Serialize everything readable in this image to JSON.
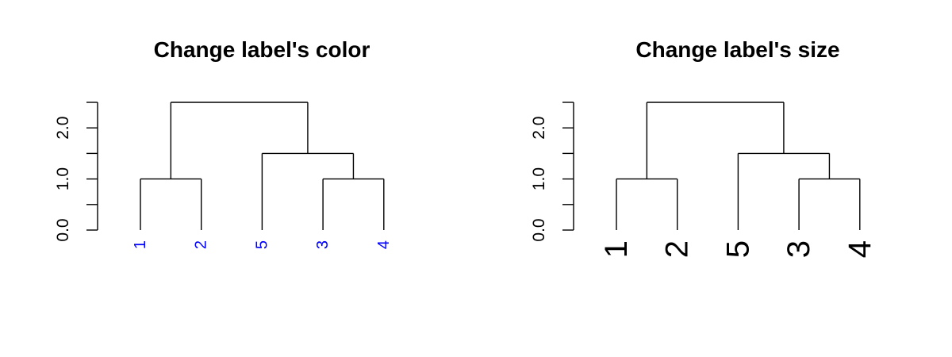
{
  "chart_data": [
    {
      "type": "dendrogram",
      "title": "Change label's color",
      "xlabel": "",
      "ylabel": "",
      "ylim": [
        0,
        2.5
      ],
      "y_ticks": [
        0,
        0.5,
        1,
        1.5,
        2,
        2.5
      ],
      "y_tick_labels": [
        "0.0",
        "",
        "1.0",
        "",
        "2.0",
        ""
      ],
      "leaves": [
        "1",
        "2",
        "5",
        "3",
        "4"
      ],
      "label_color": "#0000ff",
      "label_scale": 1,
      "merges": [
        {
          "left": "leaf:0",
          "right": "leaf:1",
          "height": 1.0
        },
        {
          "left": "leaf:3",
          "right": "leaf:4",
          "height": 1.0
        },
        {
          "left": "leaf:2",
          "right": "node:1",
          "height": 1.5
        },
        {
          "left": "node:0",
          "right": "node:2",
          "height": 2.5
        }
      ]
    },
    {
      "type": "dendrogram",
      "title": "Change label's size",
      "xlabel": "",
      "ylabel": "",
      "ylim": [
        0,
        2.5
      ],
      "y_ticks": [
        0,
        0.5,
        1,
        1.5,
        2,
        2.5
      ],
      "y_tick_labels": [
        "0.0",
        "",
        "1.0",
        "",
        "2.0",
        ""
      ],
      "leaves": [
        "1",
        "2",
        "5",
        "3",
        "4"
      ],
      "label_color": "#000000",
      "label_scale": 2,
      "merges": [
        {
          "left": "leaf:0",
          "right": "leaf:1",
          "height": 1.0
        },
        {
          "left": "leaf:3",
          "right": "leaf:4",
          "height": 1.0
        },
        {
          "left": "leaf:2",
          "right": "node:1",
          "height": 1.5
        },
        {
          "left": "node:0",
          "right": "node:2",
          "height": 2.5
        }
      ]
    }
  ]
}
